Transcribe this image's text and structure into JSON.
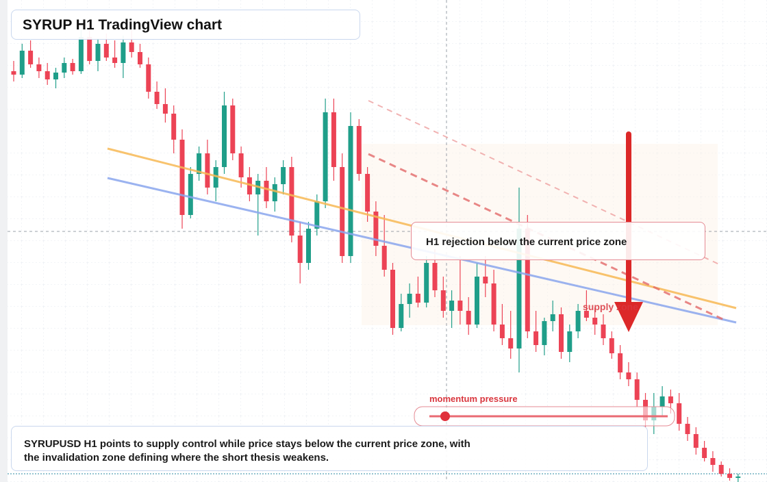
{
  "chart_data": {
    "type": "candlestick",
    "title": "SYRUP H1 TradingView chart",
    "annotations": {
      "callout": "H1 rejection below the current price zone",
      "zone_label": "supply zone",
      "meter_label": "momentum pressure",
      "summary": "SYRUPUSD H1 points to supply control while price stays below the current price zone, with the invalidation zone defining where the short thesis weakens."
    },
    "colors": {
      "up": "#1f9e89",
      "down": "#ec4355"
    },
    "ylim": [
      0,
      704
    ],
    "candles": [
      [
        600,
        615,
        585,
        595
      ],
      [
        595,
        640,
        590,
        630
      ],
      [
        630,
        645,
        605,
        610
      ],
      [
        610,
        620,
        590,
        600
      ],
      [
        600,
        612,
        580,
        588
      ],
      [
        588,
        605,
        575,
        598
      ],
      [
        598,
        620,
        590,
        612
      ],
      [
        612,
        618,
        595,
        600
      ],
      [
        600,
        660,
        596,
        650
      ],
      [
        650,
        670,
        610,
        615
      ],
      [
        615,
        648,
        600,
        640
      ],
      [
        640,
        655,
        615,
        620
      ],
      [
        620,
        645,
        605,
        612
      ],
      [
        612,
        652,
        590,
        642
      ],
      [
        642,
        660,
        620,
        628
      ],
      [
        628,
        640,
        605,
        610
      ],
      [
        610,
        620,
        560,
        570
      ],
      [
        570,
        585,
        545,
        552
      ],
      [
        552,
        575,
        525,
        538
      ],
      [
        538,
        550,
        480,
        500
      ],
      [
        500,
        515,
        370,
        390
      ],
      [
        390,
        460,
        385,
        450
      ],
      [
        450,
        490,
        440,
        480
      ],
      [
        480,
        500,
        420,
        430
      ],
      [
        430,
        470,
        410,
        460
      ],
      [
        460,
        570,
        450,
        550
      ],
      [
        550,
        560,
        470,
        480
      ],
      [
        480,
        490,
        430,
        445
      ],
      [
        445,
        460,
        410,
        420
      ],
      [
        420,
        450,
        360,
        440
      ],
      [
        440,
        460,
        400,
        410
      ],
      [
        410,
        445,
        395,
        435
      ],
      [
        435,
        470,
        420,
        460
      ],
      [
        460,
        475,
        350,
        360
      ],
      [
        360,
        380,
        290,
        320
      ],
      [
        320,
        380,
        310,
        370
      ],
      [
        370,
        420,
        360,
        410
      ],
      [
        410,
        560,
        400,
        540
      ],
      [
        540,
        560,
        440,
        460
      ],
      [
        460,
        480,
        320,
        330
      ],
      [
        330,
        540,
        320,
        520
      ],
      [
        520,
        530,
        440,
        450
      ],
      [
        450,
        460,
        380,
        395
      ],
      [
        395,
        410,
        330,
        345
      ],
      [
        345,
        390,
        300,
        310
      ],
      [
        310,
        320,
        215,
        225
      ],
      [
        225,
        275,
        220,
        260
      ],
      [
        260,
        290,
        240,
        275
      ],
      [
        275,
        300,
        255,
        262
      ],
      [
        262,
        330,
        255,
        320
      ],
      [
        320,
        340,
        270,
        280
      ],
      [
        280,
        300,
        240,
        250
      ],
      [
        250,
        280,
        225,
        265
      ],
      [
        265,
        330,
        230,
        250
      ],
      [
        250,
        270,
        215,
        230
      ],
      [
        230,
        320,
        225,
        300
      ],
      [
        300,
        330,
        270,
        290
      ],
      [
        290,
        310,
        220,
        230
      ],
      [
        230,
        260,
        200,
        210
      ],
      [
        210,
        250,
        180,
        195
      ],
      [
        195,
        430,
        160,
        370
      ],
      [
        370,
        390,
        210,
        220
      ],
      [
        220,
        250,
        190,
        200
      ],
      [
        200,
        240,
        185,
        235
      ],
      [
        235,
        265,
        220,
        245
      ],
      [
        245,
        255,
        180,
        190
      ],
      [
        190,
        230,
        175,
        220
      ],
      [
        220,
        260,
        210,
        250
      ],
      [
        250,
        280,
        235,
        240
      ],
      [
        240,
        255,
        215,
        230
      ],
      [
        230,
        245,
        200,
        210
      ],
      [
        210,
        220,
        180,
        188
      ],
      [
        188,
        200,
        150,
        160
      ],
      [
        160,
        175,
        140,
        150
      ],
      [
        150,
        160,
        110,
        120
      ],
      [
        120,
        130,
        80,
        90
      ],
      [
        90,
        130,
        70,
        110
      ],
      [
        110,
        140,
        95,
        125
      ],
      [
        125,
        135,
        100,
        115
      ],
      [
        115,
        130,
        75,
        85
      ],
      [
        85,
        95,
        60,
        70
      ],
      [
        70,
        80,
        40,
        50
      ],
      [
        50,
        60,
        30,
        35
      ],
      [
        35,
        45,
        15,
        25
      ],
      [
        25,
        30,
        8,
        12
      ],
      [
        12,
        20,
        2,
        6
      ],
      [
        6,
        12,
        0,
        8
      ]
    ]
  }
}
